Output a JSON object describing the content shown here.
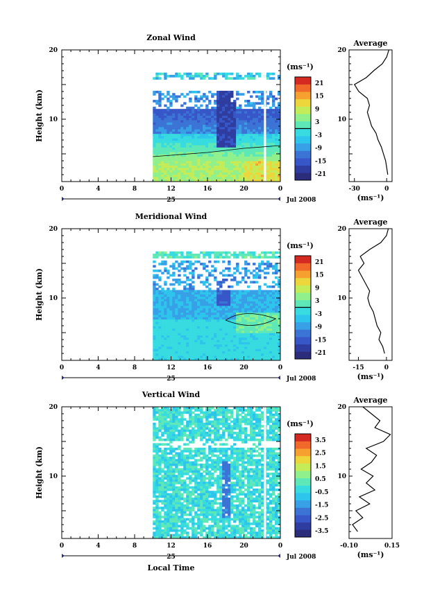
{
  "figure": {
    "xlabel": "Local Time",
    "day_label": "25",
    "date_label": "Jul 2008",
    "x_ticks": [
      "0",
      "4",
      "8",
      "12",
      "16",
      "20",
      "0"
    ],
    "ylabel": "Height (km)",
    "y_ticks": [
      "20",
      "10"
    ],
    "unit_label": "(ms⁻¹)",
    "avg_title": "Average"
  },
  "colormap": [
    "#2b2c7a",
    "#2e3d9f",
    "#3757c8",
    "#3c74d6",
    "#38a0e6",
    "#2ec5ec",
    "#37dbe0",
    "#5ee8b8",
    "#8ff08c",
    "#c4ec58",
    "#ecd63c",
    "#f6a030",
    "#f0682a",
    "#d42a22"
  ],
  "chart_data": [
    {
      "type": "heatmap",
      "title": "Zonal Wind",
      "xlabel": "",
      "ylabel": "Height (km)",
      "xlim": [
        0,
        24
      ],
      "ylim": [
        1,
        20
      ],
      "data_start_hour": 10,
      "colorbar_ticks": [
        "21",
        "15",
        "9",
        "3",
        "-3",
        "-9",
        "-15",
        "-21"
      ],
      "colorbar_range": [
        -24,
        24
      ],
      "profile": {
        "title": "Average",
        "xlabel": "(ms⁻¹)",
        "xlim": [
          -35,
          5
        ],
        "x_ticks": [
          "-30",
          "0"
        ],
        "heights": [
          2,
          3,
          4,
          5,
          6,
          7,
          8,
          9,
          10,
          11,
          12,
          13,
          14,
          15,
          16,
          17,
          18,
          19,
          20
        ],
        "values": [
          1,
          0,
          -1,
          -3,
          -5,
          -8,
          -10,
          -14,
          -16,
          -18,
          -16,
          -18,
          -26,
          -30,
          -19,
          -12,
          -4,
          0,
          2
        ]
      }
    },
    {
      "type": "heatmap",
      "title": "Meridional Wind",
      "xlabel": "",
      "ylabel": "Height (km)",
      "xlim": [
        0,
        24
      ],
      "ylim": [
        1,
        20
      ],
      "data_start_hour": 10,
      "colorbar_ticks": [
        "21",
        "15",
        "9",
        "3",
        "-3",
        "-9",
        "-15",
        "-21"
      ],
      "colorbar_range": [
        -24,
        24
      ],
      "profile": {
        "title": "Average",
        "xlabel": "(ms⁻¹)",
        "xlim": [
          -20,
          3
        ],
        "x_ticks": [
          "-15",
          "0"
        ],
        "heights": [
          2,
          3,
          4,
          5,
          6,
          7,
          8,
          9,
          10,
          11,
          12,
          13,
          14,
          15,
          16,
          17,
          18,
          19,
          20
        ],
        "values": [
          -1,
          -2,
          -4,
          -3,
          -5,
          -6,
          -7,
          -9,
          -10,
          -9,
          -11,
          -13,
          -15,
          -12,
          -14,
          -9,
          -3,
          0,
          1
        ]
      }
    },
    {
      "type": "heatmap",
      "title": "Vertical Wind",
      "xlabel": "Local Time",
      "ylabel": "Height (km)",
      "xlim": [
        0,
        24
      ],
      "ylim": [
        1,
        20
      ],
      "data_start_hour": 10,
      "colorbar_ticks": [
        "3.5",
        "2.5",
        "1.5",
        "0.5",
        "-0.5",
        "-1.5",
        "-2.5",
        "-3.5"
      ],
      "colorbar_range": [
        -4,
        4
      ],
      "profile": {
        "title": "Average",
        "xlabel": "(ms⁻¹)",
        "xlim": [
          -0.1,
          0.15
        ],
        "x_ticks": [
          "-0.10",
          "0.15"
        ],
        "heights": [
          2,
          3,
          4,
          5,
          6,
          7,
          8,
          9,
          10,
          11,
          12,
          13,
          14,
          15,
          16,
          17,
          18,
          19,
          20
        ],
        "values": [
          -0.05,
          -0.08,
          -0.02,
          -0.06,
          0.02,
          -0.04,
          0.05,
          0.0,
          0.04,
          -0.03,
          0.03,
          0.06,
          0.0,
          0.1,
          0.14,
          0.05,
          0.08,
          0.03,
          -0.02
        ]
      }
    }
  ]
}
